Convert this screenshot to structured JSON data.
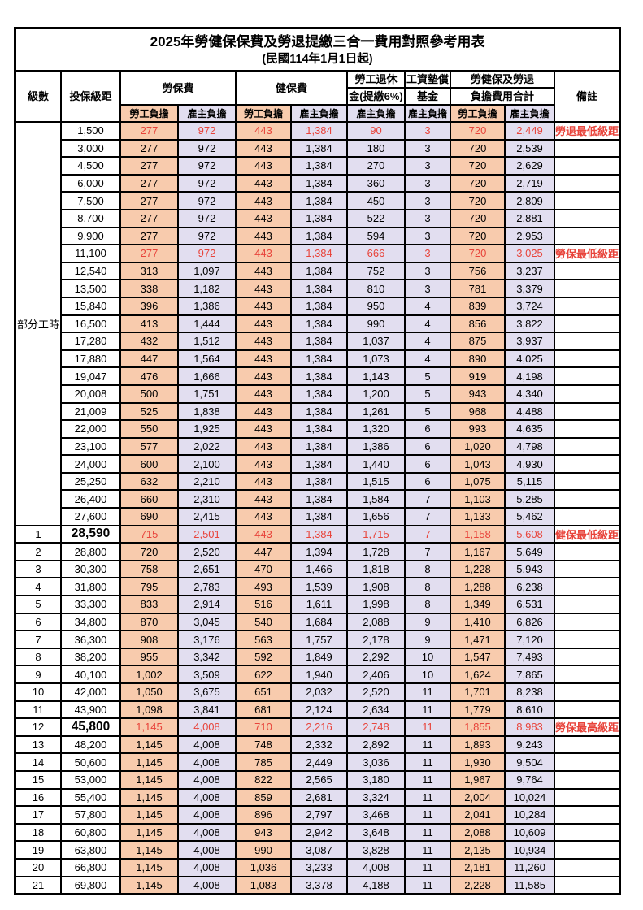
{
  "title": "2025年勞健保保費及勞退提繳三合一費用對照參考用表",
  "subtitle": "(民國114年1月1日起)",
  "header": {
    "level": "級數",
    "bracket": "投保級距",
    "labor_insurance": "勞保費",
    "health_insurance": "健保費",
    "pension_line1": "勞工退休",
    "pension_line2": "金(提繳6%)",
    "wage_fund_line1": "工資墊償",
    "wage_fund_line2": "基金",
    "total_line1": "勞健保及勞退",
    "total_line2": "負擔費用合計",
    "remark": "備註",
    "employee_share": "勞工負擔",
    "employer_share": "雇主負擔"
  },
  "colors": {
    "employee_bg": "#F8CBAD",
    "employer_bg": "#E2DEF0",
    "highlight_red": "#E8443B"
  },
  "part_time_label": "部分工時",
  "rows": [
    {
      "level": "部分工時",
      "rowspan": 23,
      "bracket": "1,500",
      "v": [
        "277",
        "972",
        "443",
        "1,384",
        "90",
        "3",
        "720",
        "2,449"
      ],
      "note": "勞退最低級距",
      "red": true,
      "big": false
    },
    {
      "bracket": "3,000",
      "v": [
        "277",
        "972",
        "443",
        "1,384",
        "180",
        "3",
        "720",
        "2,539"
      ],
      "note": "",
      "red": false,
      "big": false
    },
    {
      "bracket": "4,500",
      "v": [
        "277",
        "972",
        "443",
        "1,384",
        "270",
        "3",
        "720",
        "2,629"
      ],
      "note": "",
      "red": false,
      "big": false
    },
    {
      "bracket": "6,000",
      "v": [
        "277",
        "972",
        "443",
        "1,384",
        "360",
        "3",
        "720",
        "2,719"
      ],
      "note": "",
      "red": false,
      "big": false
    },
    {
      "bracket": "7,500",
      "v": [
        "277",
        "972",
        "443",
        "1,384",
        "450",
        "3",
        "720",
        "2,809"
      ],
      "note": "",
      "red": false,
      "big": false
    },
    {
      "bracket": "8,700",
      "v": [
        "277",
        "972",
        "443",
        "1,384",
        "522",
        "3",
        "720",
        "2,881"
      ],
      "note": "",
      "red": false,
      "big": false
    },
    {
      "bracket": "9,900",
      "v": [
        "277",
        "972",
        "443",
        "1,384",
        "594",
        "3",
        "720",
        "2,953"
      ],
      "note": "",
      "red": false,
      "big": false
    },
    {
      "bracket": "11,100",
      "v": [
        "277",
        "972",
        "443",
        "1,384",
        "666",
        "3",
        "720",
        "3,025"
      ],
      "note": "勞保最低級距",
      "red": true,
      "big": false
    },
    {
      "bracket": "12,540",
      "v": [
        "313",
        "1,097",
        "443",
        "1,384",
        "752",
        "3",
        "756",
        "3,237"
      ],
      "note": "",
      "red": false,
      "big": false
    },
    {
      "bracket": "13,500",
      "v": [
        "338",
        "1,182",
        "443",
        "1,384",
        "810",
        "3",
        "781",
        "3,379"
      ],
      "note": "",
      "red": false,
      "big": false
    },
    {
      "bracket": "15,840",
      "v": [
        "396",
        "1,386",
        "443",
        "1,384",
        "950",
        "4",
        "839",
        "3,724"
      ],
      "note": "",
      "red": false,
      "big": false
    },
    {
      "bracket": "16,500",
      "v": [
        "413",
        "1,444",
        "443",
        "1,384",
        "990",
        "4",
        "856",
        "3,822"
      ],
      "note": "",
      "red": false,
      "big": false
    },
    {
      "bracket": "17,280",
      "v": [
        "432",
        "1,512",
        "443",
        "1,384",
        "1,037",
        "4",
        "875",
        "3,937"
      ],
      "note": "",
      "red": false,
      "big": false
    },
    {
      "bracket": "17,880",
      "v": [
        "447",
        "1,564",
        "443",
        "1,384",
        "1,073",
        "4",
        "890",
        "4,025"
      ],
      "note": "",
      "red": false,
      "big": false
    },
    {
      "bracket": "19,047",
      "v": [
        "476",
        "1,666",
        "443",
        "1,384",
        "1,143",
        "5",
        "919",
        "4,198"
      ],
      "note": "",
      "red": false,
      "big": false
    },
    {
      "bracket": "20,008",
      "v": [
        "500",
        "1,751",
        "443",
        "1,384",
        "1,200",
        "5",
        "943",
        "4,340"
      ],
      "note": "",
      "red": false,
      "big": false
    },
    {
      "bracket": "21,009",
      "v": [
        "525",
        "1,838",
        "443",
        "1,384",
        "1,261",
        "5",
        "968",
        "4,488"
      ],
      "note": "",
      "red": false,
      "big": false
    },
    {
      "bracket": "22,000",
      "v": [
        "550",
        "1,925",
        "443",
        "1,384",
        "1,320",
        "6",
        "993",
        "4,635"
      ],
      "note": "",
      "red": false,
      "big": false
    },
    {
      "bracket": "23,100",
      "v": [
        "577",
        "2,022",
        "443",
        "1,384",
        "1,386",
        "6",
        "1,020",
        "4,798"
      ],
      "note": "",
      "red": false,
      "big": false
    },
    {
      "bracket": "24,000",
      "v": [
        "600",
        "2,100",
        "443",
        "1,384",
        "1,440",
        "6",
        "1,043",
        "4,930"
      ],
      "note": "",
      "red": false,
      "big": false
    },
    {
      "bracket": "25,250",
      "v": [
        "632",
        "2,210",
        "443",
        "1,384",
        "1,515",
        "6",
        "1,075",
        "5,115"
      ],
      "note": "",
      "red": false,
      "big": false
    },
    {
      "bracket": "26,400",
      "v": [
        "660",
        "2,310",
        "443",
        "1,384",
        "1,584",
        "7",
        "1,103",
        "5,285"
      ],
      "note": "",
      "red": false,
      "big": false
    },
    {
      "bracket": "27,600",
      "v": [
        "690",
        "2,415",
        "443",
        "1,384",
        "1,656",
        "7",
        "1,133",
        "5,462"
      ],
      "note": "",
      "red": false,
      "big": false
    },
    {
      "level": "1",
      "bracket": "28,590",
      "v": [
        "715",
        "2,501",
        "443",
        "1,384",
        "1,715",
        "7",
        "1,158",
        "5,608"
      ],
      "note": "健保最低級距",
      "red": true,
      "big": true
    },
    {
      "level": "2",
      "bracket": "28,800",
      "v": [
        "720",
        "2,520",
        "447",
        "1,394",
        "1,728",
        "7",
        "1,167",
        "5,649"
      ],
      "note": "",
      "red": false,
      "big": false
    },
    {
      "level": "3",
      "bracket": "30,300",
      "v": [
        "758",
        "2,651",
        "470",
        "1,466",
        "1,818",
        "8",
        "1,228",
        "5,943"
      ],
      "note": "",
      "red": false,
      "big": false
    },
    {
      "level": "4",
      "bracket": "31,800",
      "v": [
        "795",
        "2,783",
        "493",
        "1,539",
        "1,908",
        "8",
        "1,288",
        "6,238"
      ],
      "note": "",
      "red": false,
      "big": false
    },
    {
      "level": "5",
      "bracket": "33,300",
      "v": [
        "833",
        "2,914",
        "516",
        "1,611",
        "1,998",
        "8",
        "1,349",
        "6,531"
      ],
      "note": "",
      "red": false,
      "big": false
    },
    {
      "level": "6",
      "bracket": "34,800",
      "v": [
        "870",
        "3,045",
        "540",
        "1,684",
        "2,088",
        "9",
        "1,410",
        "6,826"
      ],
      "note": "",
      "red": false,
      "big": false
    },
    {
      "level": "7",
      "bracket": "36,300",
      "v": [
        "908",
        "3,176",
        "563",
        "1,757",
        "2,178",
        "9",
        "1,471",
        "7,120"
      ],
      "note": "",
      "red": false,
      "big": false
    },
    {
      "level": "8",
      "bracket": "38,200",
      "v": [
        "955",
        "3,342",
        "592",
        "1,849",
        "2,292",
        "10",
        "1,547",
        "7,493"
      ],
      "note": "",
      "red": false,
      "big": false
    },
    {
      "level": "9",
      "bracket": "40,100",
      "v": [
        "1,002",
        "3,509",
        "622",
        "1,940",
        "2,406",
        "10",
        "1,624",
        "7,865"
      ],
      "note": "",
      "red": false,
      "big": false
    },
    {
      "level": "10",
      "bracket": "42,000",
      "v": [
        "1,050",
        "3,675",
        "651",
        "2,032",
        "2,520",
        "11",
        "1,701",
        "8,238"
      ],
      "note": "",
      "red": false,
      "big": false
    },
    {
      "level": "11",
      "bracket": "43,900",
      "v": [
        "1,098",
        "3,841",
        "681",
        "2,124",
        "2,634",
        "11",
        "1,779",
        "8,610"
      ],
      "note": "",
      "red": false,
      "big": false
    },
    {
      "level": "12",
      "bracket": "45,800",
      "v": [
        "1,145",
        "4,008",
        "710",
        "2,216",
        "2,748",
        "11",
        "1,855",
        "8,983"
      ],
      "note": "勞保最高級距",
      "red": true,
      "big": true
    },
    {
      "level": "13",
      "bracket": "48,200",
      "v": [
        "1,145",
        "4,008",
        "748",
        "2,332",
        "2,892",
        "11",
        "1,893",
        "9,243"
      ],
      "note": "",
      "red": false,
      "big": false
    },
    {
      "level": "14",
      "bracket": "50,600",
      "v": [
        "1,145",
        "4,008",
        "785",
        "2,449",
        "3,036",
        "11",
        "1,930",
        "9,504"
      ],
      "note": "",
      "red": false,
      "big": false
    },
    {
      "level": "15",
      "bracket": "53,000",
      "v": [
        "1,145",
        "4,008",
        "822",
        "2,565",
        "3,180",
        "11",
        "1,967",
        "9,764"
      ],
      "note": "",
      "red": false,
      "big": false
    },
    {
      "level": "16",
      "bracket": "55,400",
      "v": [
        "1,145",
        "4,008",
        "859",
        "2,681",
        "3,324",
        "11",
        "2,004",
        "10,024"
      ],
      "note": "",
      "red": false,
      "big": false
    },
    {
      "level": "17",
      "bracket": "57,800",
      "v": [
        "1,145",
        "4,008",
        "896",
        "2,797",
        "3,468",
        "11",
        "2,041",
        "10,284"
      ],
      "note": "",
      "red": false,
      "big": false
    },
    {
      "level": "18",
      "bracket": "60,800",
      "v": [
        "1,145",
        "4,008",
        "943",
        "2,942",
        "3,648",
        "11",
        "2,088",
        "10,609"
      ],
      "note": "",
      "red": false,
      "big": false
    },
    {
      "level": "19",
      "bracket": "63,800",
      "v": [
        "1,145",
        "4,008",
        "990",
        "3,087",
        "3,828",
        "11",
        "2,135",
        "10,934"
      ],
      "note": "",
      "red": false,
      "big": false
    },
    {
      "level": "20",
      "bracket": "66,800",
      "v": [
        "1,145",
        "4,008",
        "1,036",
        "3,233",
        "4,008",
        "11",
        "2,181",
        "11,260"
      ],
      "note": "",
      "red": false,
      "big": false
    },
    {
      "level": "21",
      "bracket": "69,800",
      "v": [
        "1,145",
        "4,008",
        "1,083",
        "3,378",
        "4,188",
        "11",
        "2,228",
        "11,585"
      ],
      "note": "",
      "red": false,
      "big": false
    }
  ]
}
